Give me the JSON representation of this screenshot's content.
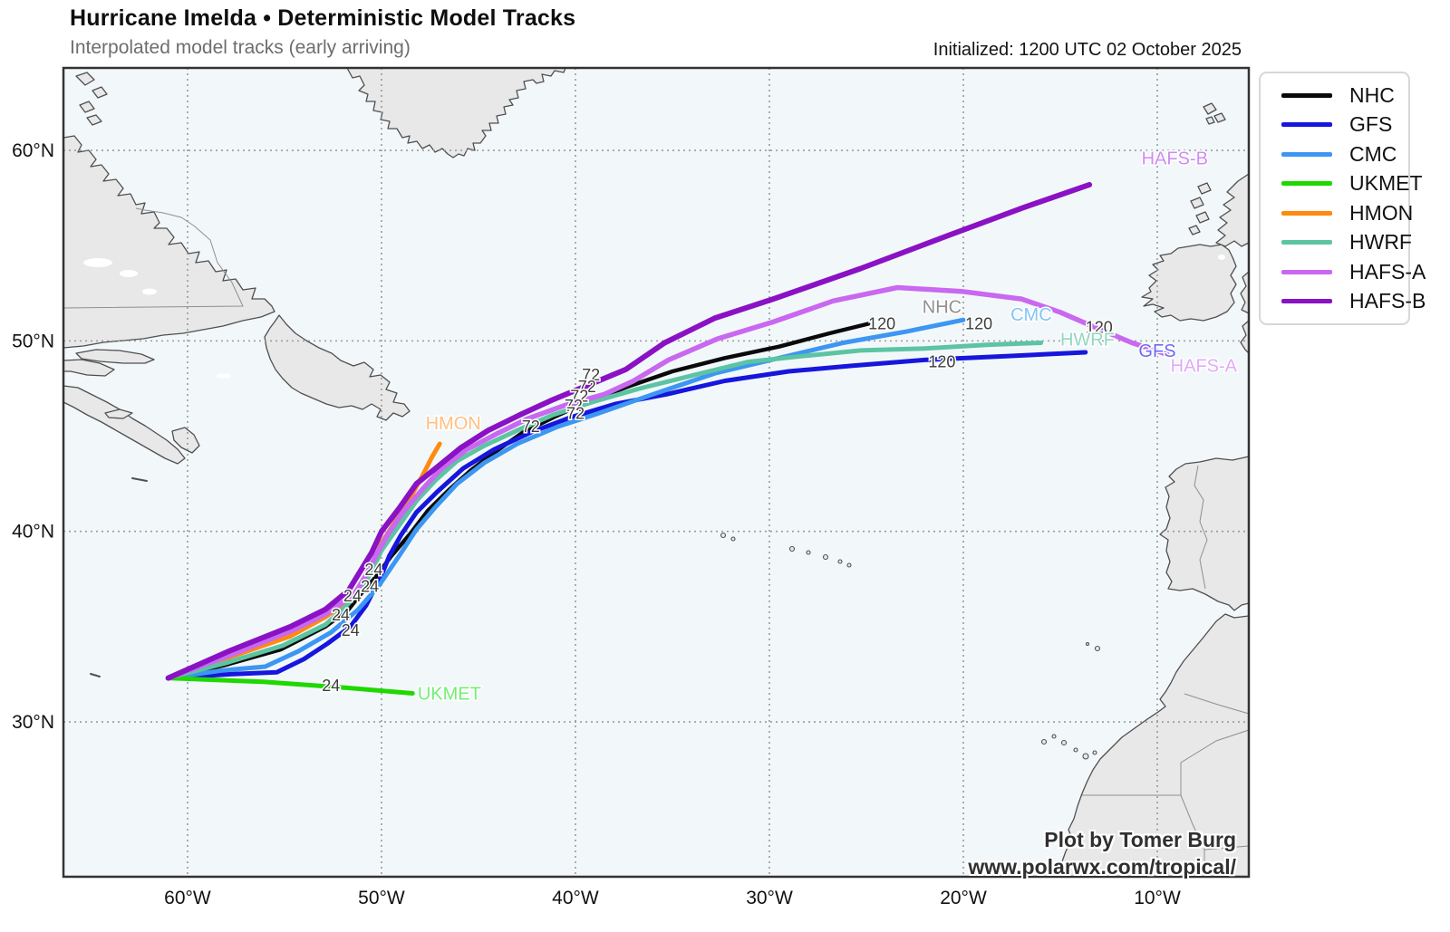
{
  "header": {
    "title": "Hurricane Imelda • Deterministic Model Tracks",
    "subtitle": "Interpolated model tracks (early arriving)",
    "initialized": "Initialized: 1200 UTC 02 October 2025"
  },
  "attribution": {
    "line1": "Plot by Tomer Burg",
    "line2": "www.polarwx.com/tropical/"
  },
  "legend": {
    "items": [
      {
        "label": "NHC",
        "color": "#0a0a0a"
      },
      {
        "label": "GFS",
        "color": "#1616dd"
      },
      {
        "label": "CMC",
        "color": "#3d96f2"
      },
      {
        "label": "UKMET",
        "color": "#1fd800"
      },
      {
        "label": "HMON",
        "color": "#ff8a0e"
      },
      {
        "label": "HWRF",
        "color": "#5cc4a3"
      },
      {
        "label": "HAFS-A",
        "color": "#c968f0"
      },
      {
        "label": "HAFS-B",
        "color": "#8a12c4"
      }
    ]
  },
  "chart_data": {
    "type": "line",
    "title": "Hurricane Imelda • Deterministic Model Tracks",
    "projection": {
      "lon_min": -66.4,
      "lon_max": -5.28,
      "lat_min": 21.87,
      "lat_max": 64.33
    },
    "grid": {
      "lon_ticks": [
        {
          "value": -60,
          "label": "60°W"
        },
        {
          "value": -50,
          "label": "50°W"
        },
        {
          "value": -40,
          "label": "40°W"
        },
        {
          "value": -30,
          "label": "30°W"
        },
        {
          "value": -20,
          "label": "20°W"
        },
        {
          "value": -10,
          "label": "10°W"
        }
      ],
      "lat_ticks": [
        {
          "value": 60,
          "label": "60°N"
        },
        {
          "value": 50,
          "label": "50°N"
        },
        {
          "value": 40,
          "label": "40°N"
        },
        {
          "value": 30,
          "label": "30°N"
        }
      ]
    },
    "series": [
      {
        "name": "NHC",
        "color": "#0a0a0a",
        "width": 4.5,
        "points": [
          [
            -61.0,
            32.3
          ],
          [
            -58.0,
            33.0
          ],
          [
            -55.2,
            33.8
          ],
          [
            -52.9,
            35.0
          ],
          [
            -51.7,
            35.9
          ],
          [
            -51.0,
            36.8
          ],
          [
            -50.3,
            37.6
          ],
          [
            -49.5,
            38.7
          ],
          [
            -48.5,
            39.9
          ],
          [
            -47.6,
            41.1
          ],
          [
            -46.5,
            42.2
          ],
          [
            -45.4,
            43.2
          ],
          [
            -44.1,
            44.2
          ],
          [
            -42.7,
            45.2
          ],
          [
            -41.1,
            46.0
          ],
          [
            -39.4,
            46.8
          ],
          [
            -37.3,
            47.6
          ],
          [
            -35.0,
            48.4
          ],
          [
            -32.3,
            49.1
          ],
          [
            -29.5,
            49.7
          ],
          [
            -26.9,
            50.4
          ],
          [
            -24.9,
            50.9
          ]
        ]
      },
      {
        "name": "GFS",
        "color": "#1616dd",
        "width": 5,
        "points": [
          [
            -61.0,
            32.3
          ],
          [
            -57.8,
            32.5
          ],
          [
            -55.4,
            32.6
          ],
          [
            -54.0,
            33.3
          ],
          [
            -52.8,
            34.1
          ],
          [
            -51.6,
            35.0
          ],
          [
            -50.8,
            36.1
          ],
          [
            -50.4,
            36.9
          ],
          [
            -50.0,
            37.7
          ],
          [
            -49.6,
            38.7
          ],
          [
            -49.0,
            39.8
          ],
          [
            -48.2,
            41.0
          ],
          [
            -47.1,
            42.1
          ],
          [
            -45.8,
            43.3
          ],
          [
            -44.2,
            44.3
          ],
          [
            -42.3,
            45.2
          ],
          [
            -40.2,
            46.0
          ],
          [
            -37.9,
            46.7
          ],
          [
            -35.3,
            47.2
          ],
          [
            -32.3,
            47.9
          ],
          [
            -29.0,
            48.4
          ],
          [
            -25.7,
            48.7
          ],
          [
            -22.0,
            49.0
          ],
          [
            -17.8,
            49.2
          ],
          [
            -13.7,
            49.4
          ]
        ]
      },
      {
        "name": "CMC",
        "color": "#3d96f2",
        "width": 5,
        "points": [
          [
            -61.0,
            32.3
          ],
          [
            -58.2,
            32.7
          ],
          [
            -56.0,
            32.9
          ],
          [
            -54.3,
            33.7
          ],
          [
            -52.6,
            34.7
          ],
          [
            -51.2,
            35.9
          ],
          [
            -50.1,
            37.2
          ],
          [
            -49.1,
            38.7
          ],
          [
            -48.2,
            40.1
          ],
          [
            -47.2,
            41.3
          ],
          [
            -46.1,
            42.5
          ],
          [
            -44.7,
            43.6
          ],
          [
            -43.0,
            44.6
          ],
          [
            -40.9,
            45.5
          ],
          [
            -38.8,
            46.2
          ],
          [
            -36.0,
            47.2
          ],
          [
            -32.8,
            48.3
          ],
          [
            -29.5,
            49.1
          ],
          [
            -26.2,
            49.9
          ],
          [
            -22.9,
            50.5
          ],
          [
            -20.0,
            51.1
          ]
        ]
      },
      {
        "name": "UKMET",
        "color": "#1fd800",
        "width": 5,
        "points": [
          [
            -61.0,
            32.3
          ],
          [
            -56.1,
            32.1
          ],
          [
            -51.9,
            31.8
          ],
          [
            -48.4,
            31.5
          ]
        ]
      },
      {
        "name": "HMON",
        "color": "#ff8a0e",
        "width": 5,
        "points": [
          [
            -61.0,
            32.3
          ],
          [
            -57.8,
            33.4
          ],
          [
            -54.7,
            34.5
          ],
          [
            -52.9,
            35.5
          ],
          [
            -51.5,
            36.5
          ],
          [
            -50.9,
            37.5
          ],
          [
            -50.4,
            38.4
          ],
          [
            -50.0,
            39.4
          ],
          [
            -49.3,
            40.5
          ],
          [
            -48.5,
            41.8
          ],
          [
            -47.9,
            42.9
          ],
          [
            -47.4,
            43.9
          ],
          [
            -47.0,
            44.6
          ]
        ]
      },
      {
        "name": "HWRF",
        "color": "#5cc4a3",
        "width": 5,
        "points": [
          [
            -61.0,
            32.3
          ],
          [
            -58.0,
            33.1
          ],
          [
            -55.1,
            34.0
          ],
          [
            -52.9,
            35.1
          ],
          [
            -51.8,
            36.1
          ],
          [
            -51.1,
            36.9
          ],
          [
            -50.5,
            37.9
          ],
          [
            -50.0,
            39.0
          ],
          [
            -49.1,
            40.3
          ],
          [
            -48.2,
            41.6
          ],
          [
            -47.2,
            42.7
          ],
          [
            -46.1,
            43.7
          ],
          [
            -44.7,
            44.5
          ],
          [
            -43.0,
            45.3
          ],
          [
            -41.2,
            46.1
          ],
          [
            -39.1,
            46.8
          ],
          [
            -36.7,
            47.5
          ],
          [
            -33.9,
            48.2
          ],
          [
            -31.1,
            48.9
          ],
          [
            -28.3,
            49.2
          ],
          [
            -25.3,
            49.5
          ],
          [
            -22.0,
            49.6
          ],
          [
            -18.7,
            49.8
          ],
          [
            -16.0,
            49.9
          ]
        ]
      },
      {
        "name": "HAFS-A",
        "color": "#c968f0",
        "width": 5.5,
        "points": [
          [
            -61.0,
            32.3
          ],
          [
            -57.8,
            33.5
          ],
          [
            -54.6,
            34.8
          ],
          [
            -52.8,
            35.7
          ],
          [
            -51.4,
            36.7
          ],
          [
            -50.8,
            37.7
          ],
          [
            -50.3,
            38.7
          ],
          [
            -49.7,
            39.8
          ],
          [
            -48.9,
            41.0
          ],
          [
            -47.9,
            42.2
          ],
          [
            -46.9,
            43.3
          ],
          [
            -45.6,
            44.3
          ],
          [
            -44.1,
            45.1
          ],
          [
            -42.5,
            45.9
          ],
          [
            -40.6,
            46.6
          ],
          [
            -38.5,
            47.2
          ],
          [
            -37.0,
            47.9
          ],
          [
            -35.2,
            49.0
          ],
          [
            -32.7,
            50.1
          ],
          [
            -29.8,
            51.0
          ],
          [
            -26.7,
            52.1
          ],
          [
            -23.4,
            52.8
          ],
          [
            -20.1,
            52.6
          ],
          [
            -17.0,
            52.2
          ],
          [
            -15.0,
            51.5
          ],
          [
            -13.4,
            50.8
          ],
          [
            -11.3,
            49.9
          ],
          [
            -9.5,
            49.3
          ]
        ]
      },
      {
        "name": "HAFS-B",
        "color": "#8a12c4",
        "width": 6,
        "points": [
          [
            -61.0,
            32.3
          ],
          [
            -57.9,
            33.7
          ],
          [
            -54.7,
            35.0
          ],
          [
            -52.9,
            35.9
          ],
          [
            -51.7,
            36.9
          ],
          [
            -51.1,
            37.9
          ],
          [
            -50.5,
            38.9
          ],
          [
            -50.0,
            40.0
          ],
          [
            -49.1,
            41.2
          ],
          [
            -48.2,
            42.5
          ],
          [
            -47.1,
            43.4
          ],
          [
            -45.9,
            44.4
          ],
          [
            -44.5,
            45.3
          ],
          [
            -42.9,
            46.1
          ],
          [
            -41.2,
            46.9
          ],
          [
            -39.3,
            47.7
          ],
          [
            -37.4,
            48.5
          ],
          [
            -35.4,
            49.9
          ],
          [
            -32.8,
            51.2
          ],
          [
            -29.8,
            52.2
          ],
          [
            -25.3,
            53.8
          ],
          [
            -20.6,
            55.6
          ],
          [
            -16.9,
            57.0
          ],
          [
            -13.5,
            58.2
          ]
        ]
      }
    ],
    "hour_labels": [
      {
        "text": "24",
        "lon": -50.4,
        "lat": 38.0
      },
      {
        "text": "24",
        "lon": -50.6,
        "lat": 37.1
      },
      {
        "text": "24",
        "lon": -51.5,
        "lat": 36.6
      },
      {
        "text": "24",
        "lon": -52.1,
        "lat": 35.6
      },
      {
        "text": "24",
        "lon": -51.6,
        "lat": 34.8
      },
      {
        "text": "24",
        "lon": -52.6,
        "lat": 31.9
      },
      {
        "text": "72",
        "lon": -39.2,
        "lat": 48.2
      },
      {
        "text": "72",
        "lon": -39.4,
        "lat": 47.6
      },
      {
        "text": "72",
        "lon": -39.8,
        "lat": 47.1
      },
      {
        "text": "72",
        "lon": -40.1,
        "lat": 46.6
      },
      {
        "text": "72",
        "lon": -40.0,
        "lat": 46.2
      },
      {
        "text": "72",
        "lon": -42.3,
        "lat": 45.5
      },
      {
        "text": "120",
        "lon": -24.2,
        "lat": 50.9
      },
      {
        "text": "120",
        "lon": -19.2,
        "lat": 50.9
      },
      {
        "text": "120",
        "lon": -13.0,
        "lat": 50.7
      },
      {
        "text": "120",
        "lon": -21.1,
        "lat": 48.9
      }
    ],
    "track_labels": [
      {
        "text": "NHC",
        "lon": -21.1,
        "lat": 51.8,
        "color": "#909090"
      },
      {
        "text": "CMC",
        "lon": -16.5,
        "lat": 51.4,
        "color": "#85c4f5"
      },
      {
        "text": "HWRF",
        "lon": -13.6,
        "lat": 50.1,
        "color": "#93d6bf"
      },
      {
        "text": "GFS",
        "lon": -10.0,
        "lat": 49.5,
        "color": "#6a6af2"
      },
      {
        "text": "HAFS-A",
        "lon": -7.6,
        "lat": 48.7,
        "color": "#e3aaf7"
      },
      {
        "text": "HAFS-B",
        "lon": -9.1,
        "lat": 59.6,
        "color": "#cf8df2"
      },
      {
        "text": "HMON",
        "lon": -46.3,
        "lat": 45.7,
        "color": "#ffbf80"
      },
      {
        "text": "UKMET",
        "lon": -46.5,
        "lat": 31.5,
        "color": "#74ee74"
      }
    ]
  }
}
